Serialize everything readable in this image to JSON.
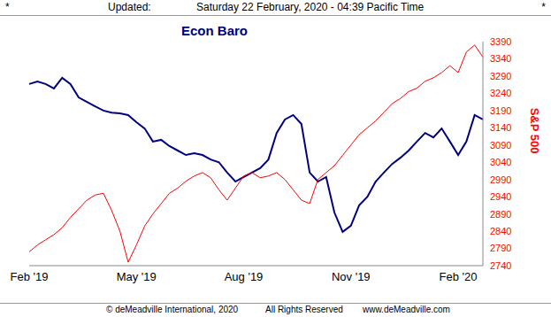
{
  "page": {
    "marks": [
      "*",
      "*"
    ],
    "updated_label": "Updated:",
    "timestamp": "Saturday 22 February, 2020 - 04:39 Pacific Time",
    "footer": [
      "© deMeadville International, 2020",
      "All Rights Reserved",
      "www.deMeadville.com"
    ]
  },
  "chart_data": {
    "type": "line",
    "title": "Econ Baro",
    "y_label": "S&P 500",
    "categories": [
      "Feb '19",
      null,
      null,
      null,
      null,
      null,
      null,
      null,
      null,
      null,
      null,
      null,
      null,
      "May '19",
      null,
      null,
      null,
      null,
      null,
      null,
      null,
      null,
      null,
      null,
      null,
      null,
      "Aug '19",
      null,
      null,
      null,
      null,
      null,
      null,
      null,
      null,
      null,
      null,
      null,
      null,
      "Nov '19",
      null,
      null,
      null,
      null,
      null,
      null,
      null,
      null,
      null,
      null,
      null,
      null,
      "Feb '20",
      null,
      null,
      null
    ],
    "series": [
      {
        "name": "Econ Baro",
        "color": "#000080",
        "values": [
          3267,
          3274,
          3267,
          3254,
          3285,
          3267,
          3228,
          3215,
          3202,
          3190,
          3184,
          3182,
          3177,
          3156,
          3138,
          3100,
          3105,
          3087,
          3074,
          3061,
          3066,
          3061,
          3048,
          3040,
          3010,
          2984,
          2997,
          3010,
          3023,
          3048,
          3125,
          3164,
          3177,
          3151,
          3010,
          2984,
          2997,
          2894,
          2838,
          2856,
          2915,
          2940,
          2984,
          3010,
          3035,
          3053,
          3074,
          3100,
          3125,
          3112,
          3138,
          3100,
          3061,
          3100,
          3177,
          3164
        ]
      },
      {
        "name": "S&P 500",
        "color": "#ff0000",
        "values": [
          2780,
          2800,
          2815,
          2830,
          2850,
          2880,
          2905,
          2930,
          2945,
          2950,
          2900,
          2840,
          2750,
          2800,
          2855,
          2890,
          2920,
          2950,
          2965,
          2985,
          3000,
          3010,
          2995,
          2960,
          2930,
          2965,
          3000,
          3010,
          2995,
          3000,
          3010,
          2990,
          2960,
          2930,
          2920,
          2990,
          3010,
          3030,
          3060,
          3090,
          3120,
          3140,
          3160,
          3185,
          3210,
          3225,
          3245,
          3255,
          3275,
          3285,
          3300,
          3320,
          3300,
          3360,
          3380,
          3345
        ]
      }
    ],
    "ylim": [
      2740,
      3390
    ],
    "yticks": [
      2740,
      2790,
      2840,
      2890,
      2940,
      2990,
      3040,
      3090,
      3140,
      3190,
      3240,
      3290,
      3340,
      3390
    ],
    "grid": false
  }
}
